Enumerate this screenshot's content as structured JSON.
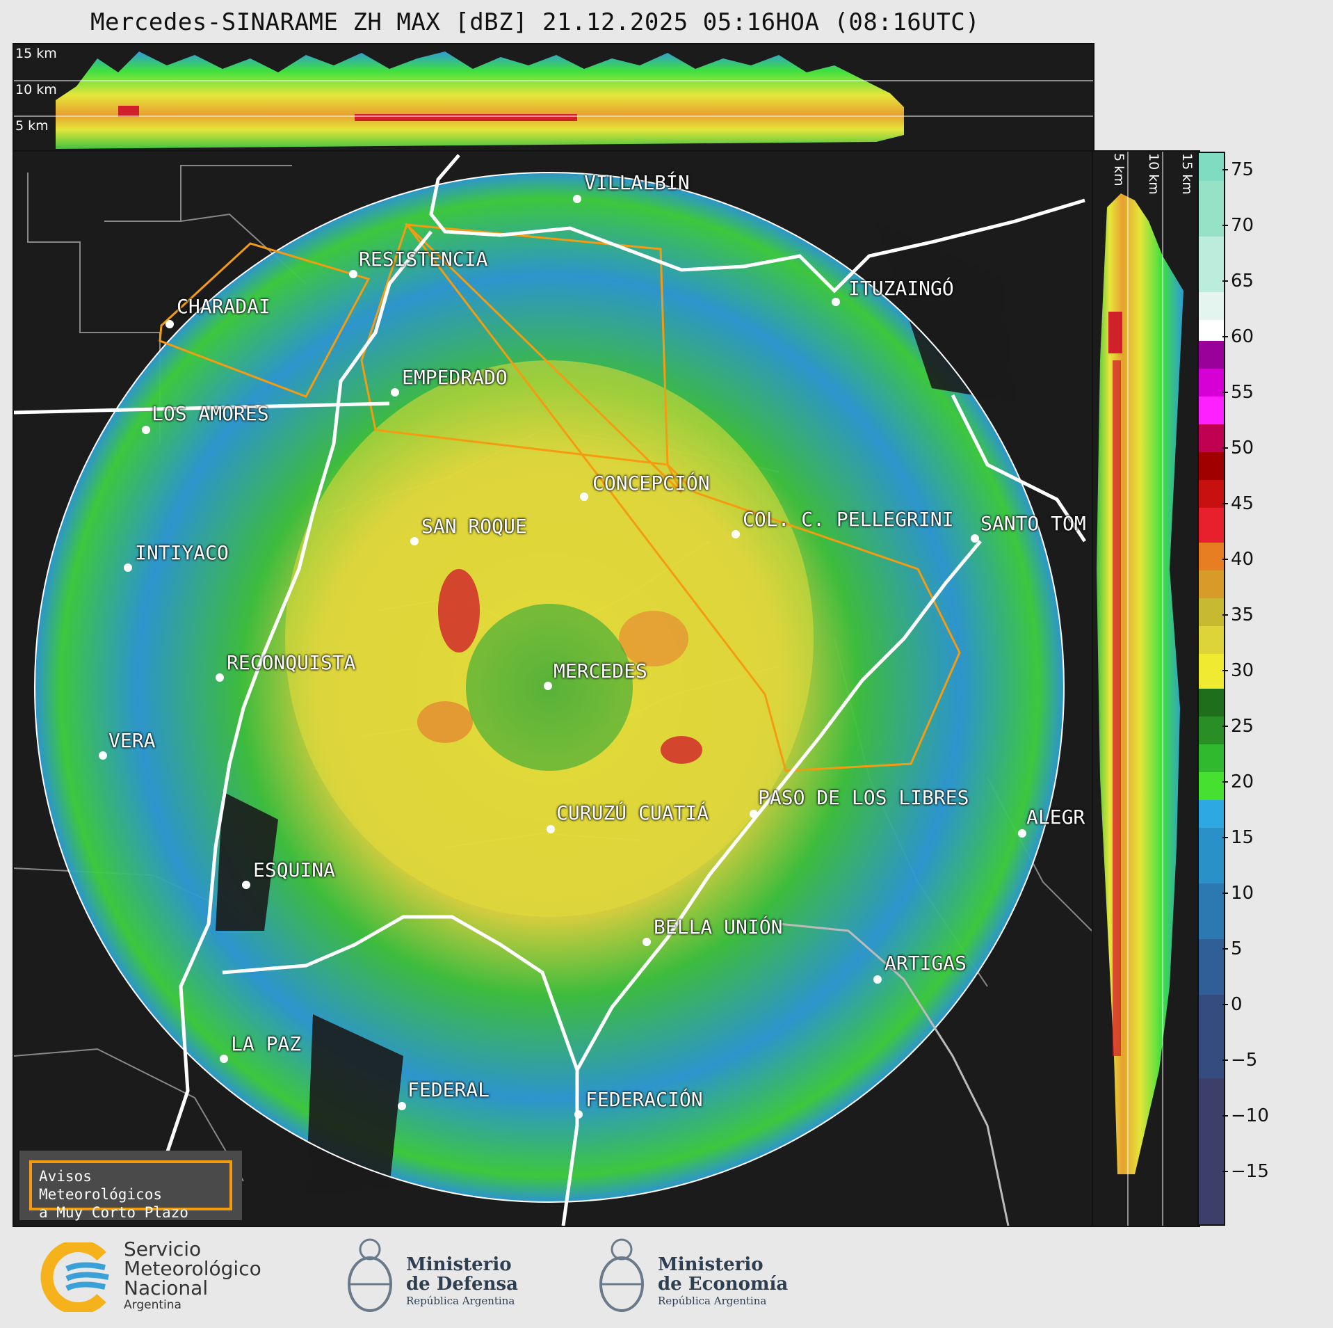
{
  "title": "Mercedes-SINARAME ZH MAX [dBZ] 21.12.2025 05:16HOA (08:16UTC)",
  "height_labels": {
    "h15": "15 km",
    "h10": "10 km",
    "h5": "5 km"
  },
  "colorbar": {
    "ticks": [
      "75",
      "70",
      "65",
      "60",
      "55",
      "50",
      "45",
      "40",
      "35",
      "30",
      "25",
      "20",
      "15",
      "10",
      "5",
      "0",
      "−5",
      "−10",
      "−15"
    ],
    "range": [
      -20,
      77
    ]
  },
  "cities": [
    {
      "name": "VILLALBÍN"
    },
    {
      "name": "RESISTENCIA"
    },
    {
      "name": "CHARADAI"
    },
    {
      "name": "ITUZAINGÓ"
    },
    {
      "name": "EMPEDRADO"
    },
    {
      "name": "LOS AMORES"
    },
    {
      "name": "CONCEPCIÓN"
    },
    {
      "name": "SAN ROQUE"
    },
    {
      "name": "COL. C. PELLEGRINI"
    },
    {
      "name": "SANTO TOM"
    },
    {
      "name": "INTIYACO"
    },
    {
      "name": "MERCEDES"
    },
    {
      "name": "RECONQUISTA"
    },
    {
      "name": "VERA"
    },
    {
      "name": "CURUZÚ CUATIÁ"
    },
    {
      "name": "PASO DE LOS LIBRES"
    },
    {
      "name": "ALEGR"
    },
    {
      "name": "ESQUINA"
    },
    {
      "name": "BELLA UNIÓN"
    },
    {
      "name": "ARTIGAS"
    },
    {
      "name": "LA PAZ"
    },
    {
      "name": "FEDERAL"
    },
    {
      "name": "FEDERACIÓN"
    }
  ],
  "warning_box": {
    "line1": "Avisos Meteorológicos",
    "line2": "a Muy Corto Plazo"
  },
  "logos": {
    "smn": {
      "line1": "Servicio",
      "line2": "Meteorológico",
      "line3": "Nacional",
      "line4": "Argentina"
    },
    "defensa": {
      "line1": "Ministerio",
      "line2": "de Defensa",
      "line3": "República Argentina"
    },
    "economia": {
      "line1": "Ministerio",
      "line2": "de Economía",
      "line3": "República Argentina"
    }
  },
  "colors": {
    "background": "#1b1b1b",
    "warning_polygon": "#f39c12",
    "river": "#ffffff",
    "boundary": "#888888"
  }
}
